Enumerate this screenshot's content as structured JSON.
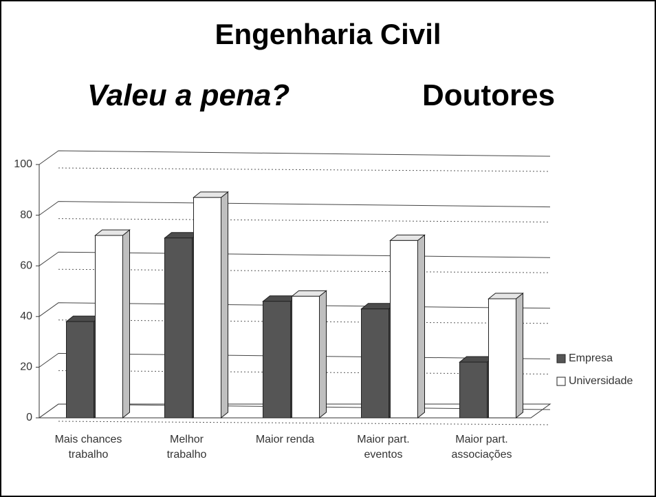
{
  "chart_data": {
    "type": "bar",
    "title": "Engenharia Civil",
    "subtitle": "Valeu a pena?",
    "subtitle_right": "Doutores",
    "categories": [
      "Mais chances\ntrabalho",
      "Melhor\ntrabalho",
      "Maior renda",
      "Maior part.\neventos",
      "Maior part.\nassociações"
    ],
    "series": [
      {
        "name": "Empresa",
        "color": "#555555",
        "values": [
          38,
          71,
          46,
          43,
          22
        ]
      },
      {
        "name": "Universidade",
        "color": "#ffffff",
        "values": [
          72,
          87,
          48,
          70,
          47
        ]
      }
    ],
    "ylim": [
      0,
      100
    ],
    "yticks": [
      0,
      20,
      40,
      60,
      80,
      100
    ],
    "grid": true,
    "legend": "right"
  }
}
